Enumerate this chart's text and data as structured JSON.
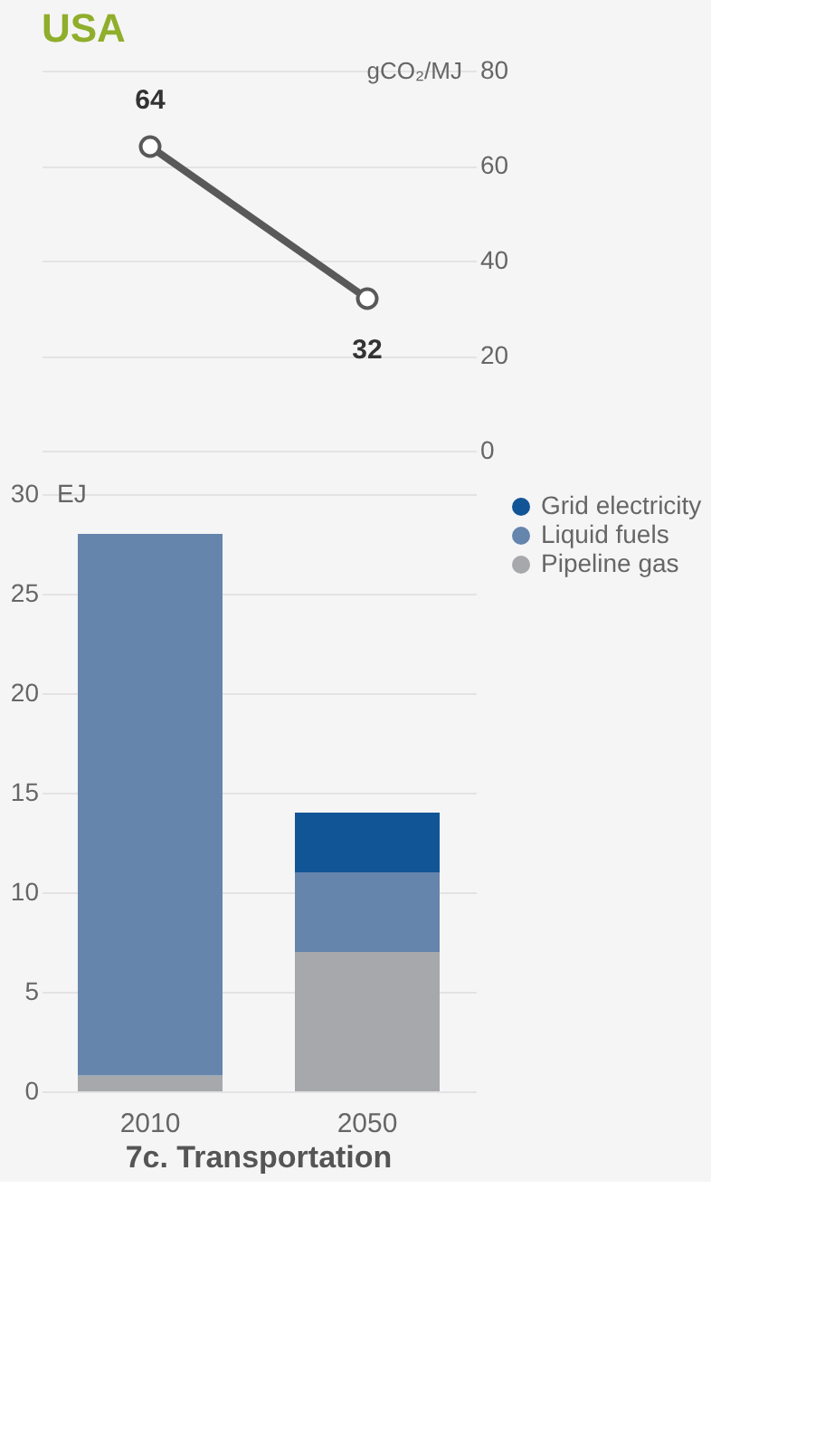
{
  "chart_data": [
    {
      "type": "line",
      "title": "USA",
      "categories": [
        "2010",
        "2050"
      ],
      "ylabel": "gCO₂/MJ",
      "ylim": [
        0,
        80
      ],
      "yticks": [
        0,
        20,
        40,
        60,
        80
      ],
      "grid": "y",
      "marker": "circle",
      "data_labels": true,
      "tick_labels": "y",
      "series": [
        {
          "color": "#595959",
          "values": [
            64,
            32
          ]
        }
      ]
    },
    {
      "type": "bar",
      "stacked": true,
      "categories": [
        "2010",
        "2050"
      ],
      "ylabel": "EJ",
      "ylim": [
        0,
        30
      ],
      "yticks": [
        0,
        5,
        10,
        15,
        20,
        25,
        30
      ],
      "grid": "y",
      "legend": "right",
      "annotations": [
        "7c. Transportation"
      ],
      "series": [
        {
          "name": "Pipeline gas",
          "color": "#a7a8ab",
          "values": [
            0.8,
            7
          ]
        },
        {
          "name": "Liquid fuels",
          "color": "#6685ad",
          "values": [
            27.2,
            4
          ]
        },
        {
          "name": "Grid electricity",
          "color": "#125596",
          "values": [
            null,
            3
          ]
        }
      ]
    }
  ]
}
